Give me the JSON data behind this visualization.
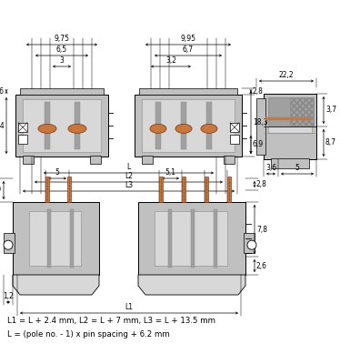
{
  "bg_color": "#ffffff",
  "lc": "#000000",
  "gray1": "#a0a0a0",
  "gray2": "#c0c0c0",
  "gray3": "#d8d8d8",
  "gray4": "#888888",
  "orange": "#c8783c",
  "figure_width": 3.74,
  "figure_height": 4.0,
  "dpi": 100,
  "formula1": "L1 = L + 2.4 mm, L2 = L + 7 mm, L3 = L + 13.5 mm",
  "formula2": "L = (pole no. - 1) x pin spacing + 6.2 mm"
}
